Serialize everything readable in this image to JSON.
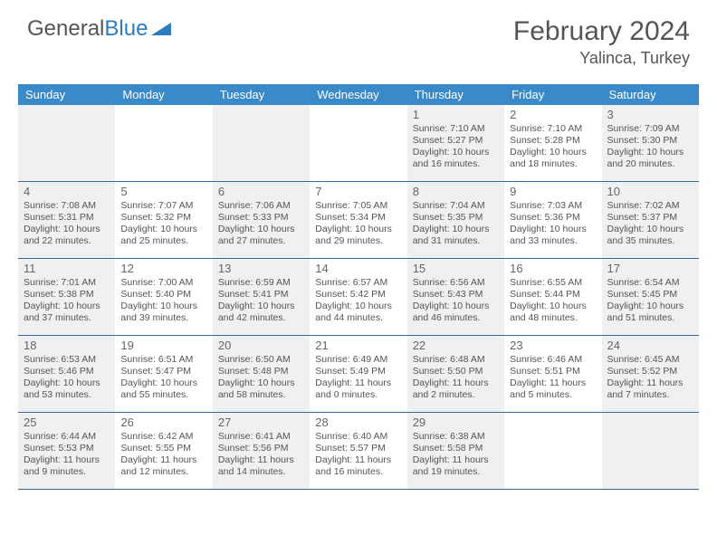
{
  "logo": {
    "text1": "General",
    "text2": "Blue"
  },
  "title": "February 2024",
  "location": "Yalinca, Turkey",
  "header_bg": "#3a8ac9",
  "shaded_bg": "#eef0f1",
  "day_names": [
    "Sunday",
    "Monday",
    "Tuesday",
    "Wednesday",
    "Thursday",
    "Friday",
    "Saturday"
  ],
  "weeks": [
    [
      {
        "n": "",
        "shaded": true
      },
      {
        "n": "",
        "shaded": false
      },
      {
        "n": "",
        "shaded": true
      },
      {
        "n": "",
        "shaded": false
      },
      {
        "n": "1",
        "shaded": true,
        "sr": "Sunrise: 7:10 AM",
        "ss": "Sunset: 5:27 PM",
        "dl": "Daylight: 10 hours and 16 minutes."
      },
      {
        "n": "2",
        "shaded": false,
        "sr": "Sunrise: 7:10 AM",
        "ss": "Sunset: 5:28 PM",
        "dl": "Daylight: 10 hours and 18 minutes."
      },
      {
        "n": "3",
        "shaded": true,
        "sr": "Sunrise: 7:09 AM",
        "ss": "Sunset: 5:30 PM",
        "dl": "Daylight: 10 hours and 20 minutes."
      }
    ],
    [
      {
        "n": "4",
        "shaded": true,
        "sr": "Sunrise: 7:08 AM",
        "ss": "Sunset: 5:31 PM",
        "dl": "Daylight: 10 hours and 22 minutes."
      },
      {
        "n": "5",
        "shaded": false,
        "sr": "Sunrise: 7:07 AM",
        "ss": "Sunset: 5:32 PM",
        "dl": "Daylight: 10 hours and 25 minutes."
      },
      {
        "n": "6",
        "shaded": true,
        "sr": "Sunrise: 7:06 AM",
        "ss": "Sunset: 5:33 PM",
        "dl": "Daylight: 10 hours and 27 minutes."
      },
      {
        "n": "7",
        "shaded": false,
        "sr": "Sunrise: 7:05 AM",
        "ss": "Sunset: 5:34 PM",
        "dl": "Daylight: 10 hours and 29 minutes."
      },
      {
        "n": "8",
        "shaded": true,
        "sr": "Sunrise: 7:04 AM",
        "ss": "Sunset: 5:35 PM",
        "dl": "Daylight: 10 hours and 31 minutes."
      },
      {
        "n": "9",
        "shaded": false,
        "sr": "Sunrise: 7:03 AM",
        "ss": "Sunset: 5:36 PM",
        "dl": "Daylight: 10 hours and 33 minutes."
      },
      {
        "n": "10",
        "shaded": true,
        "sr": "Sunrise: 7:02 AM",
        "ss": "Sunset: 5:37 PM",
        "dl": "Daylight: 10 hours and 35 minutes."
      }
    ],
    [
      {
        "n": "11",
        "shaded": true,
        "sr": "Sunrise: 7:01 AM",
        "ss": "Sunset: 5:38 PM",
        "dl": "Daylight: 10 hours and 37 minutes."
      },
      {
        "n": "12",
        "shaded": false,
        "sr": "Sunrise: 7:00 AM",
        "ss": "Sunset: 5:40 PM",
        "dl": "Daylight: 10 hours and 39 minutes."
      },
      {
        "n": "13",
        "shaded": true,
        "sr": "Sunrise: 6:59 AM",
        "ss": "Sunset: 5:41 PM",
        "dl": "Daylight: 10 hours and 42 minutes."
      },
      {
        "n": "14",
        "shaded": false,
        "sr": "Sunrise: 6:57 AM",
        "ss": "Sunset: 5:42 PM",
        "dl": "Daylight: 10 hours and 44 minutes."
      },
      {
        "n": "15",
        "shaded": true,
        "sr": "Sunrise: 6:56 AM",
        "ss": "Sunset: 5:43 PM",
        "dl": "Daylight: 10 hours and 46 minutes."
      },
      {
        "n": "16",
        "shaded": false,
        "sr": "Sunrise: 6:55 AM",
        "ss": "Sunset: 5:44 PM",
        "dl": "Daylight: 10 hours and 48 minutes."
      },
      {
        "n": "17",
        "shaded": true,
        "sr": "Sunrise: 6:54 AM",
        "ss": "Sunset: 5:45 PM",
        "dl": "Daylight: 10 hours and 51 minutes."
      }
    ],
    [
      {
        "n": "18",
        "shaded": true,
        "sr": "Sunrise: 6:53 AM",
        "ss": "Sunset: 5:46 PM",
        "dl": "Daylight: 10 hours and 53 minutes."
      },
      {
        "n": "19",
        "shaded": false,
        "sr": "Sunrise: 6:51 AM",
        "ss": "Sunset: 5:47 PM",
        "dl": "Daylight: 10 hours and 55 minutes."
      },
      {
        "n": "20",
        "shaded": true,
        "sr": "Sunrise: 6:50 AM",
        "ss": "Sunset: 5:48 PM",
        "dl": "Daylight: 10 hours and 58 minutes."
      },
      {
        "n": "21",
        "shaded": false,
        "sr": "Sunrise: 6:49 AM",
        "ss": "Sunset: 5:49 PM",
        "dl": "Daylight: 11 hours and 0 minutes."
      },
      {
        "n": "22",
        "shaded": true,
        "sr": "Sunrise: 6:48 AM",
        "ss": "Sunset: 5:50 PM",
        "dl": "Daylight: 11 hours and 2 minutes."
      },
      {
        "n": "23",
        "shaded": false,
        "sr": "Sunrise: 6:46 AM",
        "ss": "Sunset: 5:51 PM",
        "dl": "Daylight: 11 hours and 5 minutes."
      },
      {
        "n": "24",
        "shaded": true,
        "sr": "Sunrise: 6:45 AM",
        "ss": "Sunset: 5:52 PM",
        "dl": "Daylight: 11 hours and 7 minutes."
      }
    ],
    [
      {
        "n": "25",
        "shaded": true,
        "sr": "Sunrise: 6:44 AM",
        "ss": "Sunset: 5:53 PM",
        "dl": "Daylight: 11 hours and 9 minutes."
      },
      {
        "n": "26",
        "shaded": false,
        "sr": "Sunrise: 6:42 AM",
        "ss": "Sunset: 5:55 PM",
        "dl": "Daylight: 11 hours and 12 minutes."
      },
      {
        "n": "27",
        "shaded": true,
        "sr": "Sunrise: 6:41 AM",
        "ss": "Sunset: 5:56 PM",
        "dl": "Daylight: 11 hours and 14 minutes."
      },
      {
        "n": "28",
        "shaded": false,
        "sr": "Sunrise: 6:40 AM",
        "ss": "Sunset: 5:57 PM",
        "dl": "Daylight: 11 hours and 16 minutes."
      },
      {
        "n": "29",
        "shaded": true,
        "sr": "Sunrise: 6:38 AM",
        "ss": "Sunset: 5:58 PM",
        "dl": "Daylight: 11 hours and 19 minutes."
      },
      {
        "n": "",
        "shaded": false
      },
      {
        "n": "",
        "shaded": true
      }
    ]
  ]
}
